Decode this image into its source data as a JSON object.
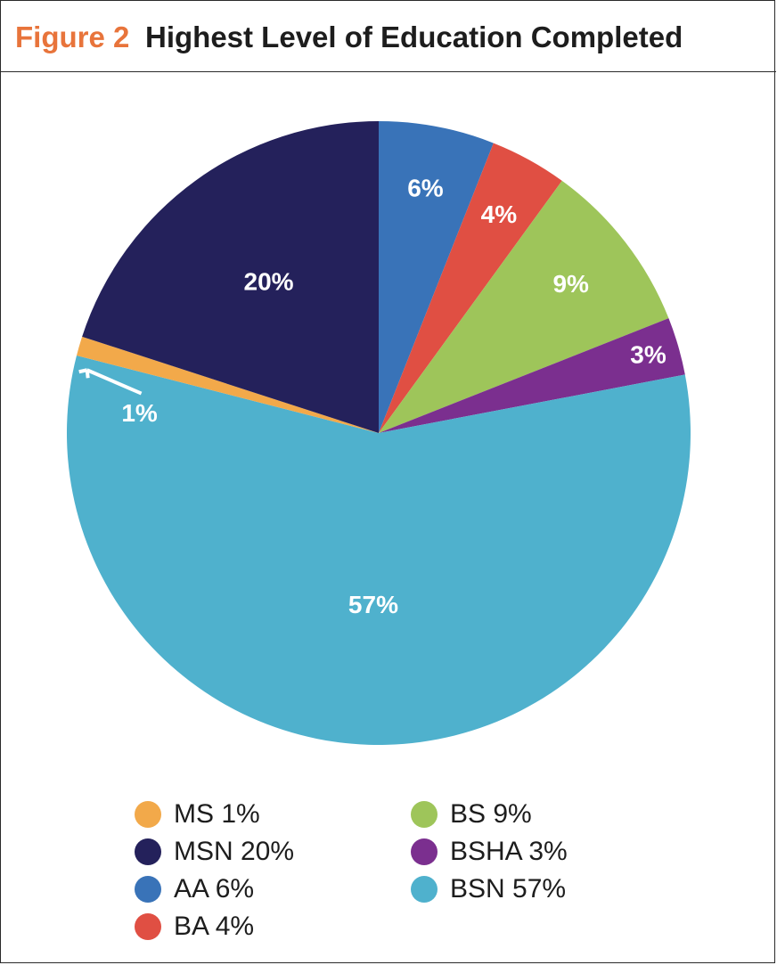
{
  "header": {
    "figure_label": "Figure 2",
    "title": "Highest Level of Education Completed"
  },
  "chart_data": {
    "type": "pie",
    "title": "Highest Level of Education Completed",
    "start_angle_deg": 0,
    "slices": [
      {
        "name": "AA",
        "value": 6,
        "label": "6%",
        "color": "#3973b8"
      },
      {
        "name": "BA",
        "value": 4,
        "label": "4%",
        "color": "#e04f43"
      },
      {
        "name": "BS",
        "value": 9,
        "label": "9%",
        "color": "#9ec55a"
      },
      {
        "name": "BSHA",
        "value": 3,
        "label": "3%",
        "color": "#7b2f8f"
      },
      {
        "name": "BSN",
        "value": 57,
        "label": "57%",
        "color": "#4fb1cd"
      },
      {
        "name": "MS",
        "value": 1,
        "label": "1%",
        "color": "#f2a94a"
      },
      {
        "name": "MSN",
        "value": 20,
        "label": "20%",
        "color": "#24215b"
      }
    ],
    "legend": [
      {
        "text": "MS 1%",
        "color": "#f2a94a"
      },
      {
        "text": "MSN 20%",
        "color": "#24215b"
      },
      {
        "text": "AA 6%",
        "color": "#3973b8"
      },
      {
        "text": "BA 4%",
        "color": "#e04f43"
      },
      {
        "text": "BS 9%",
        "color": "#9ec55a"
      },
      {
        "text": "BSHA 3%",
        "color": "#7b2f8f"
      },
      {
        "text": "BSN 57%",
        "color": "#4fb1cd"
      }
    ],
    "legend_placement": "bottom"
  }
}
